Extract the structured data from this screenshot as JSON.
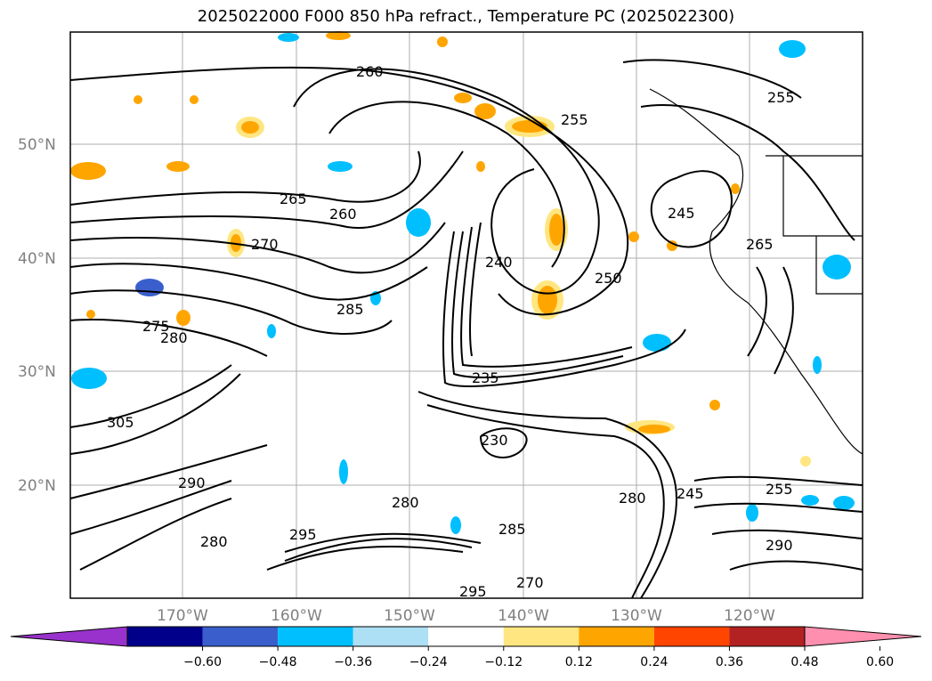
{
  "title": "2025022000 F000 850 hPa refract., Temperature PC (2025022300)",
  "map": {
    "lat_labels": [
      "50°N",
      "40°N",
      "30°N",
      "20°N"
    ],
    "lon_labels": [
      "170°W",
      "160°W",
      "150°W",
      "140°W",
      "130°W",
      "120°W"
    ],
    "gridlines": true,
    "contour_labels": [
      "260",
      "265",
      "270",
      "275",
      "280",
      "285",
      "290",
      "295",
      "250",
      "255",
      "240",
      "245",
      "235",
      "230",
      "305"
    ]
  },
  "colorbar": {
    "ticks": [
      "−0.60",
      "−0.48",
      "−0.36",
      "−0.24",
      "−0.12",
      "0.12",
      "0.24",
      "0.36",
      "0.48",
      "0.60"
    ],
    "colors": [
      "#9932CC",
      "#00008B",
      "#3A5FCD",
      "#00BFFF",
      "#ADDFF5",
      "#FFFFFF",
      "#FFE680",
      "#FFA500",
      "#FF4500",
      "#B22222",
      "#FF8FAF"
    ],
    "extend": "both"
  }
}
